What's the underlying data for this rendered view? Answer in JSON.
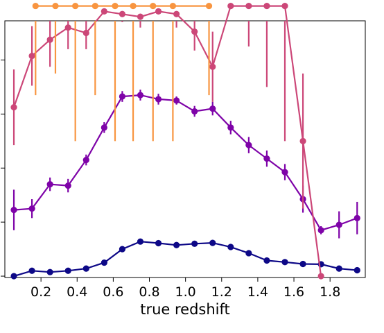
{
  "chart_data": {
    "type": "line",
    "title": "",
    "xlabel": "true redshift",
    "ylabel": "",
    "xlim": [
      0.0,
      1.995
    ],
    "ylim": [
      -0.005,
      0.945
    ],
    "x_ticks": [
      0.2,
      0.4,
      0.6,
      0.8,
      1.0,
      1.2,
      1.4,
      1.6,
      1.8
    ],
    "x_tick_labels": [
      "0.2",
      "0.4",
      "0.6",
      "0.8",
      "1.0",
      "1.2",
      "1.4",
      "1.6",
      "1.8"
    ],
    "y_ticks": [
      0.0,
      0.2,
      0.4,
      0.6,
      0.8
    ],
    "y_tick_labels": [
      "",
      "",
      "",
      "",
      ""
    ],
    "grid": false,
    "legend": "none",
    "series": [
      {
        "color": "#0d0887",
        "x": [
          0.05,
          0.15,
          0.25,
          0.35,
          0.45,
          0.55,
          0.65,
          0.75,
          0.85,
          0.95,
          1.05,
          1.15,
          1.25,
          1.35,
          1.45,
          1.55,
          1.65,
          1.75,
          1.85,
          1.95
        ],
        "y": [
          0.0,
          0.02,
          0.015,
          0.02,
          0.028,
          0.05,
          0.1,
          0.128,
          0.122,
          0.115,
          0.12,
          0.123,
          0.108,
          0.085,
          0.058,
          0.052,
          0.045,
          0.044,
          0.028,
          0.022
        ],
        "err": [
          0.004,
          0.004,
          0.004,
          0.004,
          0.004,
          0.005,
          0.008,
          0.008,
          0.007,
          0.006,
          0.006,
          0.006,
          0.006,
          0.006,
          0.006,
          0.006,
          0.006,
          0.006,
          0.006,
          0.005
        ]
      },
      {
        "color": "#7e03a8",
        "x": [
          0.05,
          0.15,
          0.25,
          0.35,
          0.45,
          0.55,
          0.65,
          0.75,
          0.85,
          0.95,
          1.05,
          1.15,
          1.25,
          1.35,
          1.45,
          1.55,
          1.65,
          1.75,
          1.85,
          1.95
        ],
        "y": [
          0.245,
          0.25,
          0.34,
          0.335,
          0.43,
          0.55,
          0.665,
          0.67,
          0.655,
          0.65,
          0.61,
          0.62,
          0.55,
          0.485,
          0.435,
          0.385,
          0.285,
          0.17,
          0.19,
          0.215
        ],
        "err": [
          0.075,
          0.035,
          0.025,
          0.025,
          0.02,
          0.02,
          0.02,
          0.02,
          0.02,
          0.015,
          0.02,
          0.025,
          0.025,
          0.03,
          0.03,
          0.03,
          0.05,
          0.015,
          0.05,
          0.06
        ]
      },
      {
        "color": "#cc4778",
        "x": [
          0.05,
          0.15,
          0.25,
          0.35,
          0.45,
          0.55,
          0.65,
          0.75,
          0.85,
          0.95,
          1.05,
          1.15,
          1.25,
          1.35,
          1.45,
          1.55,
          1.65,
          1.75
        ],
        "y": [
          0.625,
          0.815,
          0.875,
          0.92,
          0.9,
          0.98,
          0.97,
          0.96,
          0.98,
          0.97,
          0.905,
          0.775,
          1.0,
          1.0,
          1.0,
          1.0,
          0.5,
          0.0
        ],
        "err": [
          0.14,
          0.11,
          0.1,
          0.08,
          0.06,
          0.03,
          0.03,
          0.04,
          0.03,
          0.05,
          0.07,
          0.13,
          0.0,
          0.15,
          0.3,
          0.5,
          0.25,
          0.0
        ]
      },
      {
        "color": "#f89540",
        "x": [
          0.17,
          0.28,
          0.39,
          0.5,
          0.61,
          0.71,
          0.82,
          0.93,
          1.13
        ],
        "y": [
          1.0,
          1.0,
          1.0,
          1.0,
          1.0,
          1.0,
          1.0,
          1.0,
          1.0
        ],
        "err": [
          0.33,
          0.25,
          0.5,
          0.33,
          0.5,
          0.5,
          0.5,
          0.5,
          0.33
        ]
      }
    ]
  }
}
